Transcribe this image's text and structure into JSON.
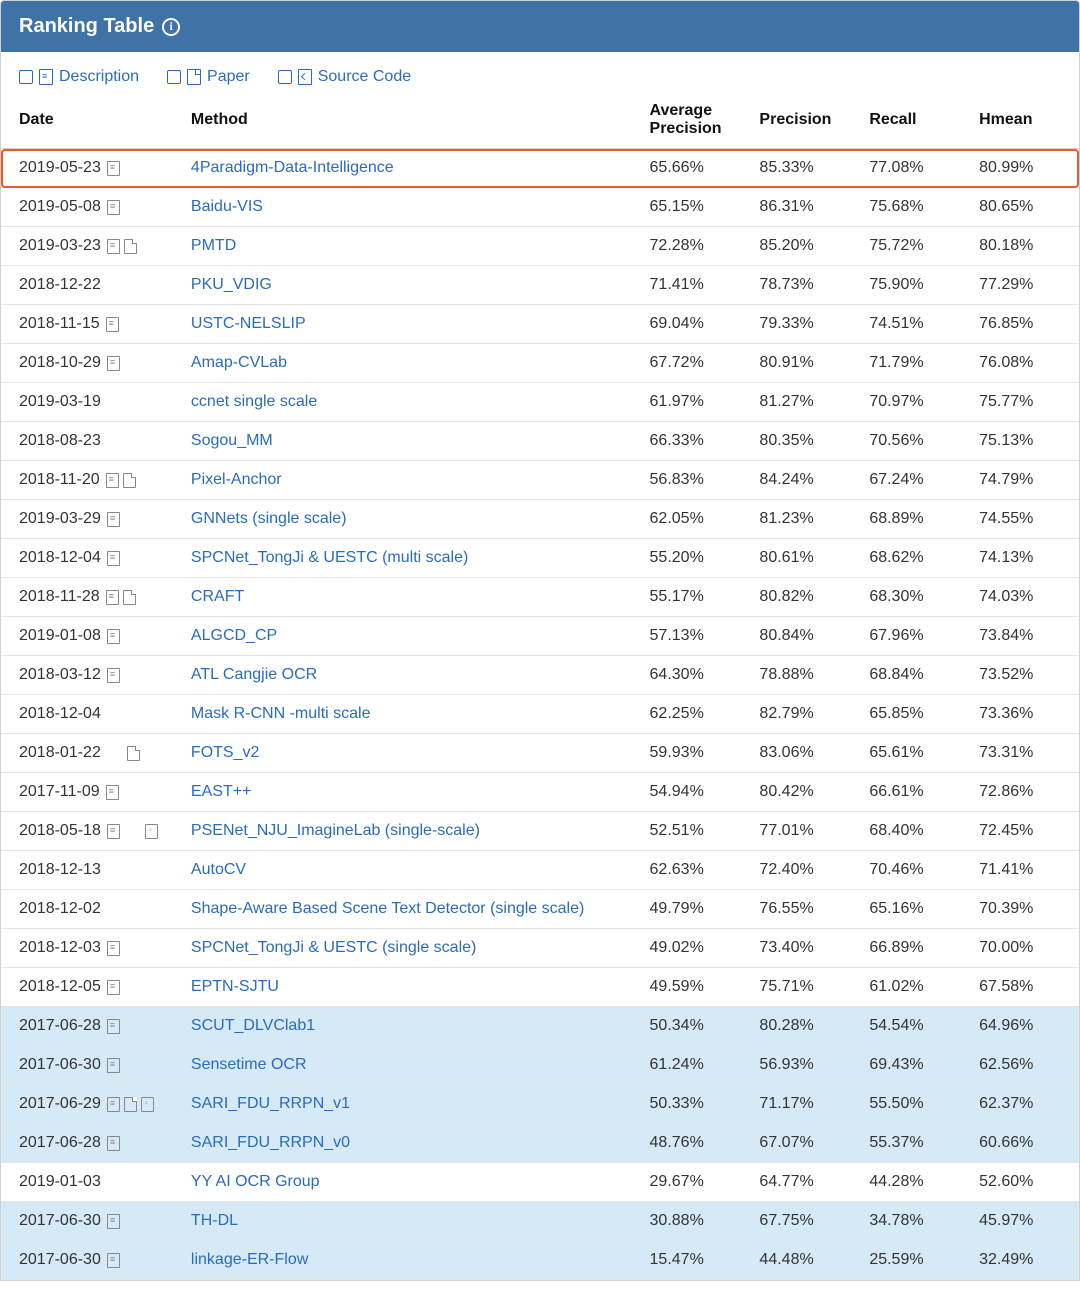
{
  "panel": {
    "title": "Ranking Table",
    "header_bg": "#3f72a7",
    "header_text_color": "#ffffff"
  },
  "filters": [
    {
      "label": "Description",
      "icon": "doc"
    },
    {
      "label": "Paper",
      "icon": "pdf"
    },
    {
      "label": "Source Code",
      "icon": "code"
    }
  ],
  "columns": [
    {
      "key": "date",
      "label": "Date"
    },
    {
      "key": "method",
      "label": "Method"
    },
    {
      "key": "avg_precision",
      "label": "Average Precision"
    },
    {
      "key": "precision",
      "label": "Precision"
    },
    {
      "key": "recall",
      "label": "Recall"
    },
    {
      "key": "hmean",
      "label": "Hmean"
    }
  ],
  "colors": {
    "link": "#2a6bbd",
    "row_border": "#e4e4e4",
    "highlight_bg": "#d6e9f6",
    "outline": "#e25c2c"
  },
  "rows": [
    {
      "date": "2019-05-23",
      "icons": [
        "doc"
      ],
      "method": "4Paradigm-Data-Intelligence",
      "avg_precision": "65.66%",
      "precision": "85.33%",
      "recall": "77.08%",
      "hmean": "80.99%",
      "outlined": true
    },
    {
      "date": "2019-05-08",
      "icons": [
        "doc"
      ],
      "method": "Baidu-VIS",
      "avg_precision": "65.15%",
      "precision": "86.31%",
      "recall": "75.68%",
      "hmean": "80.65%"
    },
    {
      "date": "2019-03-23",
      "icons": [
        "doc",
        "pdf"
      ],
      "method": "PMTD",
      "avg_precision": "72.28%",
      "precision": "85.20%",
      "recall": "75.72%",
      "hmean": "80.18%"
    },
    {
      "date": "2018-12-22",
      "icons": [],
      "method": "PKU_VDIG",
      "avg_precision": "71.41%",
      "precision": "78.73%",
      "recall": "75.90%",
      "hmean": "77.29%"
    },
    {
      "date": "2018-11-15",
      "icons": [
        "doc"
      ],
      "method": "USTC-NELSLIP",
      "avg_precision": "69.04%",
      "precision": "79.33%",
      "recall": "74.51%",
      "hmean": "76.85%"
    },
    {
      "date": "2018-10-29",
      "icons": [
        "doc"
      ],
      "method": "Amap-CVLab",
      "avg_precision": "67.72%",
      "precision": "80.91%",
      "recall": "71.79%",
      "hmean": "76.08%"
    },
    {
      "date": "2019-03-19",
      "icons": [],
      "method": "ccnet single scale",
      "avg_precision": "61.97%",
      "precision": "81.27%",
      "recall": "70.97%",
      "hmean": "75.77%"
    },
    {
      "date": "2018-08-23",
      "icons": [],
      "method": "Sogou_MM",
      "avg_precision": "66.33%",
      "precision": "80.35%",
      "recall": "70.56%",
      "hmean": "75.13%"
    },
    {
      "date": "2018-11-20",
      "icons": [
        "doc",
        "pdf"
      ],
      "method": "Pixel-Anchor",
      "avg_precision": "56.83%",
      "precision": "84.24%",
      "recall": "67.24%",
      "hmean": "74.79%"
    },
    {
      "date": "2019-03-29",
      "icons": [
        "doc"
      ],
      "method": "GNNets (single scale)",
      "avg_precision": "62.05%",
      "precision": "81.23%",
      "recall": "68.89%",
      "hmean": "74.55%"
    },
    {
      "date": "2018-12-04",
      "icons": [
        "doc"
      ],
      "method": "SPCNet_TongJi & UESTC (multi scale)",
      "avg_precision": "55.20%",
      "precision": "80.61%",
      "recall": "68.62%",
      "hmean": "74.13%"
    },
    {
      "date": "2018-11-28",
      "icons": [
        "doc",
        "pdf"
      ],
      "method": "CRAFT",
      "avg_precision": "55.17%",
      "precision": "80.82%",
      "recall": "68.30%",
      "hmean": "74.03%"
    },
    {
      "date": "2019-01-08",
      "icons": [
        "doc"
      ],
      "method": "ALGCD_CP",
      "avg_precision": "57.13%",
      "precision": "80.84%",
      "recall": "67.96%",
      "hmean": "73.84%"
    },
    {
      "date": "2018-03-12",
      "icons": [
        "doc"
      ],
      "method": "ATL Cangjie OCR",
      "avg_precision": "64.30%",
      "precision": "78.88%",
      "recall": "68.84%",
      "hmean": "73.52%"
    },
    {
      "date": "2018-12-04",
      "icons": [],
      "method": "Mask R-CNN -multi scale",
      "avg_precision": "62.25%",
      "precision": "82.79%",
      "recall": "65.85%",
      "hmean": "73.36%"
    },
    {
      "date": "2018-01-22",
      "icons": [
        "pdf"
      ],
      "indent_icons": true,
      "method": "FOTS_v2",
      "avg_precision": "59.93%",
      "precision": "83.06%",
      "recall": "65.61%",
      "hmean": "73.31%"
    },
    {
      "date": "2017-11-09",
      "icons": [
        "doc"
      ],
      "method": "EAST++",
      "avg_precision": "54.94%",
      "precision": "80.42%",
      "recall": "66.61%",
      "hmean": "72.86%"
    },
    {
      "date": "2018-05-18",
      "icons": [
        "doc",
        "gap",
        "code"
      ],
      "method": "PSENet_NJU_ImagineLab (single-scale)",
      "avg_precision": "52.51%",
      "precision": "77.01%",
      "recall": "68.40%",
      "hmean": "72.45%"
    },
    {
      "date": "2018-12-13",
      "icons": [],
      "method": "AutoCV",
      "avg_precision": "62.63%",
      "precision": "72.40%",
      "recall": "70.46%",
      "hmean": "71.41%"
    },
    {
      "date": "2018-12-02",
      "icons": [],
      "method": "Shape-Aware Based Scene Text Detector (single scale)",
      "avg_precision": "49.79%",
      "precision": "76.55%",
      "recall": "65.16%",
      "hmean": "70.39%"
    },
    {
      "date": "2018-12-03",
      "icons": [
        "doc"
      ],
      "method": "SPCNet_TongJi & UESTC (single scale)",
      "avg_precision": "49.02%",
      "precision": "73.40%",
      "recall": "66.89%",
      "hmean": "70.00%"
    },
    {
      "date": "2018-12-05",
      "icons": [
        "doc"
      ],
      "method": "EPTN-SJTU",
      "avg_precision": "49.59%",
      "precision": "75.71%",
      "recall": "61.02%",
      "hmean": "67.58%"
    },
    {
      "date": "2017-06-28",
      "icons": [
        "doc"
      ],
      "method": "SCUT_DLVClab1",
      "avg_precision": "50.34%",
      "precision": "80.28%",
      "recall": "54.54%",
      "hmean": "64.96%",
      "highlighted": true
    },
    {
      "date": "2017-06-30",
      "icons": [
        "doc"
      ],
      "method": "Sensetime OCR",
      "avg_precision": "61.24%",
      "precision": "56.93%",
      "recall": "69.43%",
      "hmean": "62.56%",
      "highlighted": true
    },
    {
      "date": "2017-06-29",
      "icons": [
        "doc",
        "pdf",
        "code"
      ],
      "method": "SARI_FDU_RRPN_v1",
      "avg_precision": "50.33%",
      "precision": "71.17%",
      "recall": "55.50%",
      "hmean": "62.37%",
      "highlighted": true
    },
    {
      "date": "2017-06-28",
      "icons": [
        "doc"
      ],
      "method": "SARI_FDU_RRPN_v0",
      "avg_precision": "48.76%",
      "precision": "67.07%",
      "recall": "55.37%",
      "hmean": "60.66%",
      "highlighted": true
    },
    {
      "date": "2019-01-03",
      "icons": [],
      "method": "YY AI OCR Group",
      "avg_precision": "29.67%",
      "precision": "64.77%",
      "recall": "44.28%",
      "hmean": "52.60%"
    },
    {
      "date": "2017-06-30",
      "icons": [
        "doc"
      ],
      "method": "TH-DL",
      "avg_precision": "30.88%",
      "precision": "67.75%",
      "recall": "34.78%",
      "hmean": "45.97%",
      "highlighted": true
    },
    {
      "date": "2017-06-30",
      "icons": [
        "doc"
      ],
      "method": "linkage-ER-Flow",
      "avg_precision": "15.47%",
      "precision": "44.48%",
      "recall": "25.59%",
      "hmean": "32.49%",
      "highlighted": true
    }
  ]
}
